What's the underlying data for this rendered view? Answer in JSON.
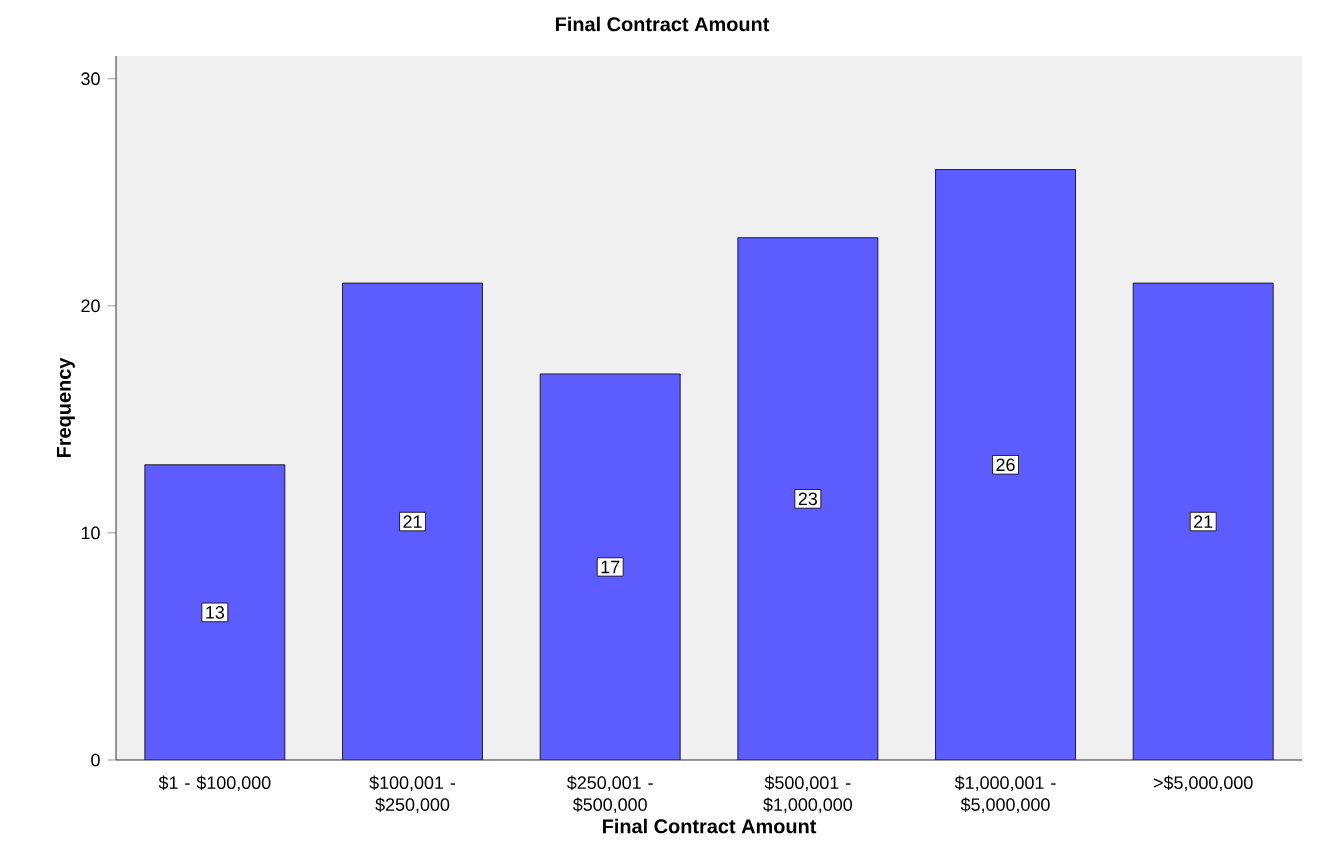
{
  "chart_data": {
    "type": "bar",
    "title": "Final Contract Amount",
    "xlabel": "Final Contract Amount",
    "ylabel": "Frequency",
    "categories": [
      "$1 - $100,000",
      "$100,001 - $250,000",
      "$250,001 - $500,000",
      "$500,001 - $1,000,000",
      "$1,000,001 - $5,000,000",
      ">$5,000,000"
    ],
    "values": [
      13,
      21,
      17,
      23,
      26,
      21
    ],
    "color": "#5c5cff",
    "ylim": [
      0,
      31
    ],
    "yticks": [
      0,
      10,
      20,
      30
    ],
    "data_labels": true
  }
}
